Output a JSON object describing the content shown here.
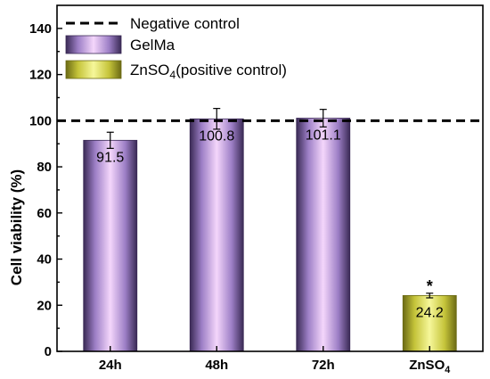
{
  "chart_data": {
    "type": "bar",
    "categories": [
      "24h",
      "48h",
      "72h",
      "ZnSO4"
    ],
    "category_display": [
      {
        "base": "24h",
        "sub": ""
      },
      {
        "base": "48h",
        "sub": ""
      },
      {
        "base": "72h",
        "sub": ""
      },
      {
        "base": "ZnSO",
        "sub": "4"
      }
    ],
    "values": [
      91.5,
      100.8,
      101.1,
      24.2
    ],
    "value_labels": [
      "91.5",
      "100.8",
      "101.1",
      "24.2"
    ],
    "errors": [
      3.5,
      4.5,
      3.8,
      1.0
    ],
    "bar_series": [
      "GelMa",
      "GelMa",
      "GelMa",
      "ZnSO4(positive control)"
    ],
    "significance": [
      "",
      "",
      "",
      "*"
    ],
    "reference_line": {
      "value": 100,
      "name": "Negative control",
      "style": "dashed",
      "color": "#000000"
    },
    "series": [
      {
        "name": "GelMa",
        "color": "#e9c4f3",
        "edge_color": "#3a2a55"
      },
      {
        "name": "ZnSO4(positive control)",
        "color": "#eef07a",
        "edge_color": "#6b6a14"
      }
    ],
    "legend": {
      "placement": "top-left",
      "entries": [
        {
          "kind": "line",
          "base": "Negative control",
          "sub": "",
          "tail": ""
        },
        {
          "kind": "bar",
          "series": 0,
          "base": "GelMa",
          "sub": "",
          "tail": ""
        },
        {
          "kind": "bar",
          "series": 1,
          "base": "ZnSO",
          "sub": "4",
          "tail": "(positive control)"
        }
      ]
    },
    "title": "",
    "xlabel": "",
    "ylabel": "Cell viability (%)",
    "ylim": [
      0,
      150
    ],
    "yticks": [
      0,
      20,
      40,
      60,
      80,
      100,
      120,
      140
    ],
    "grid": false
  }
}
